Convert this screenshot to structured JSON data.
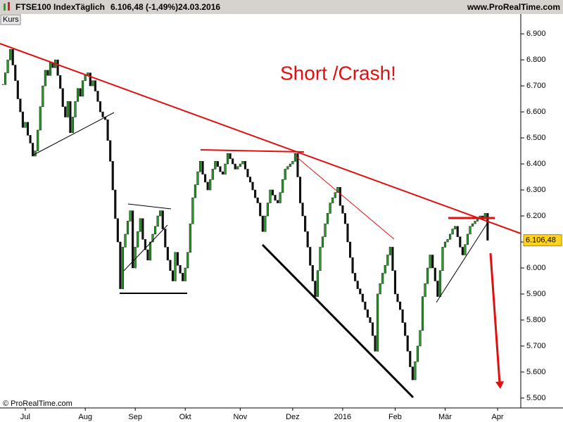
{
  "chart_data": {
    "type": "candlestick",
    "name": "FTSE100 Index",
    "interval": "Täglich",
    "quote": "6.106,48 (-1,49%)",
    "date": "24.03.2016",
    "source": "www.ProRealTime.com",
    "panel_label": "Kurs",
    "annotation": "Short /Crash!",
    "copyright": "© ProRealTime.com",
    "last_label": "6.106,48",
    "up_color": "#22a422",
    "down_color": "#111111",
    "values": [
      6705,
      6750,
      6800,
      6840,
      6780,
      6720,
      6650,
      6600,
      6540,
      6560,
      6510,
      6480,
      6430,
      6450,
      6530,
      6620,
      6700,
      6760,
      6740,
      6790,
      6770,
      6800,
      6740,
      6690,
      6620,
      6580,
      6640,
      6520,
      6580,
      6640,
      6690,
      6660,
      6720,
      6740,
      6750,
      6700,
      6720,
      6680,
      6640,
      6600,
      6580,
      6570,
      6490,
      6410,
      6300,
      6190,
      6100,
      5920,
      6080,
      6130,
      6180,
      6220,
      6000,
      6080,
      6140,
      6190,
      6110,
      6070,
      6030,
      6100,
      6130,
      6160,
      6200,
      6220,
      6150,
      6080,
      6030,
      5990,
      5950,
      6060,
      6010,
      5980,
      5950,
      6000,
      6060,
      6170,
      6270,
      6320,
      6370,
      6410,
      6360,
      6330,
      6300,
      6340,
      6380,
      6410,
      6390,
      6370,
      6360,
      6400,
      6440,
      6420,
      6400,
      6380,
      6390,
      6400,
      6410,
      6380,
      6350,
      6330,
      6300,
      6270,
      6250,
      6200,
      6140,
      6200,
      6250,
      6300,
      6280,
      6260,
      6250,
      6290,
      6340,
      6380,
      6390,
      6400,
      6410,
      6440,
      6350,
      6250,
      6200,
      6140,
      6080,
      6010,
      5950,
      5890,
      5990,
      6080,
      6120,
      6170,
      6210,
      6250,
      6270,
      6290,
      6310,
      6240,
      6210,
      6170,
      6100,
      6040,
      5980,
      5950,
      5920,
      5900,
      5870,
      5840,
      5810,
      5790,
      5740,
      5680,
      5900,
      5940,
      5980,
      6010,
      6050,
      6080,
      5990,
      5900,
      5870,
      5840,
      5790,
      5740,
      5680,
      5620,
      5570,
      5640,
      5700,
      5760,
      5890,
      5940,
      6000,
      6050,
      6000,
      5950,
      5890,
      5990,
      6080,
      6100,
      6110,
      6130,
      6150,
      6160,
      6120,
      6080,
      6050,
      6090,
      6130,
      6160,
      6170,
      6180,
      6190,
      6200,
      6190,
      6210,
      6106.48
    ],
    "xlim": [
      0,
      207
    ],
    "xticks": [
      {
        "value": 9,
        "label": "Jul"
      },
      {
        "value": 33,
        "label": "Aug"
      },
      {
        "value": 53,
        "label": "Sep"
      },
      {
        "value": 73,
        "label": "Okt"
      },
      {
        "value": 95,
        "label": "Nov"
      },
      {
        "value": 116,
        "label": "Dez"
      },
      {
        "value": 136,
        "label": "2016"
      },
      {
        "value": 157,
        "label": "Feb"
      },
      {
        "value": 177,
        "label": "Mär"
      },
      {
        "value": 198,
        "label": "Apr"
      }
    ],
    "ylim": [
      5462,
      6976
    ],
    "yticks": [
      {
        "value": 6900,
        "label": "6.900"
      },
      {
        "value": 6800,
        "label": "6.800"
      },
      {
        "value": 6700,
        "label": "6.700"
      },
      {
        "value": 6600,
        "label": "6.600"
      },
      {
        "value": 6500,
        "label": "6.500"
      },
      {
        "value": 6400,
        "label": "6.400"
      },
      {
        "value": 6300,
        "label": "6.300"
      },
      {
        "value": 6200,
        "label": "6.200"
      },
      {
        "value": 6100,
        "label": "6.100"
      },
      {
        "value": 6000,
        "label": "6.000"
      },
      {
        "value": 5900,
        "label": "5.900"
      },
      {
        "value": 5800,
        "label": "5.800"
      },
      {
        "value": 5700,
        "label": "5.700"
      },
      {
        "value": 5600,
        "label": "5.600"
      },
      {
        "value": 5500,
        "label": "5.500"
      }
    ],
    "grid": false
  }
}
